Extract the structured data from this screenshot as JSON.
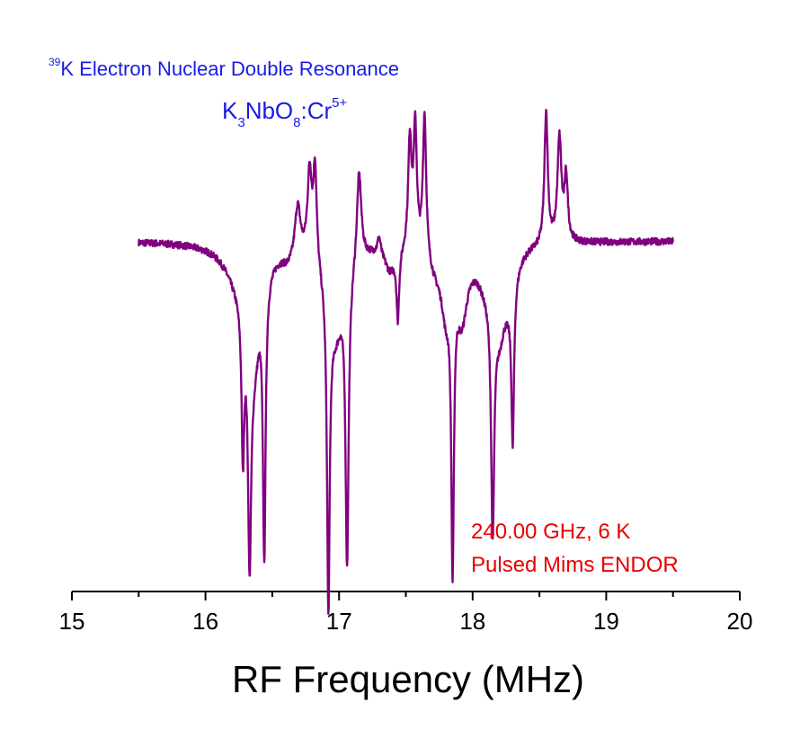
{
  "chart_data": {
    "type": "line",
    "title_line1": {
      "superscript": "39",
      "text": "K Electron Nuclear Double Resonance"
    },
    "title_line2": {
      "parts": [
        {
          "t": "K",
          "s": ""
        },
        {
          "t": "3",
          "s": "sub"
        },
        {
          "t": "NbO",
          "s": ""
        },
        {
          "t": "8",
          "s": "sub"
        },
        {
          "t": ":Cr",
          "s": ""
        },
        {
          "t": "5+",
          "s": "sup"
        }
      ]
    },
    "annotations": [
      "240.00 GHz, 6 K",
      "Pulsed Mims ENDOR"
    ],
    "xlabel": "RF Frequency (MHz)",
    "ylabel": "",
    "xlim": [
      15,
      20
    ],
    "ylim": [
      -1.0,
      1.0
    ],
    "x_ticks": [
      "15",
      "16",
      "17",
      "18",
      "19",
      "20"
    ],
    "x_tick_values": [
      15,
      16,
      17,
      18,
      19,
      20
    ],
    "minor_tick_step": 0.5,
    "y_axis_visible": false,
    "grid": false,
    "series": [
      {
        "color": "#800080",
        "x_range": [
          15.5,
          19.5
        ],
        "baseline": 0,
        "noise": 0.012,
        "peaks": [
          {
            "x": 16.24,
            "amp": -0.1,
            "w": 0.12
          },
          {
            "x": 16.28,
            "amp": -0.52,
            "w": 0.012
          },
          {
            "x": 16.33,
            "amp": -0.78,
            "w": 0.014
          },
          {
            "x": 16.44,
            "amp": -0.95,
            "w": 0.012
          },
          {
            "x": 16.36,
            "amp": -0.35,
            "w": 0.06
          },
          {
            "x": 16.69,
            "amp": 0.18,
            "w": 0.025
          },
          {
            "x": 16.62,
            "amp": -0.04,
            "w": 0.06
          },
          {
            "x": 16.78,
            "amp": 0.3,
            "w": 0.02
          },
          {
            "x": 16.82,
            "amp": 0.33,
            "w": 0.015
          },
          {
            "x": 16.92,
            "amp": -1.08,
            "w": 0.012
          },
          {
            "x": 16.97,
            "amp": -0.3,
            "w": 0.08
          },
          {
            "x": 17.06,
            "amp": -1.0,
            "w": 0.014
          },
          {
            "x": 17.15,
            "amp": 0.32,
            "w": 0.02
          },
          {
            "x": 17.3,
            "amp": 0.06,
            "w": 0.015
          },
          {
            "x": 17.38,
            "amp": -0.08,
            "w": 0.05
          },
          {
            "x": 17.44,
            "amp": -0.24,
            "w": 0.012
          },
          {
            "x": 17.53,
            "amp": 0.38,
            "w": 0.015
          },
          {
            "x": 17.57,
            "amp": 0.42,
            "w": 0.015
          },
          {
            "x": 17.64,
            "amp": 0.5,
            "w": 0.015
          },
          {
            "x": 17.72,
            "amp": -0.08,
            "w": 0.08
          },
          {
            "x": 17.85,
            "amp": -1.0,
            "w": 0.012
          },
          {
            "x": 17.8,
            "amp": -0.18,
            "w": 0.04
          },
          {
            "x": 17.92,
            "amp": -0.22,
            "w": 0.05
          },
          {
            "x": 18.1,
            "amp": -0.1,
            "w": 0.08
          },
          {
            "x": 18.15,
            "amp": -0.82,
            "w": 0.014
          },
          {
            "x": 18.2,
            "amp": -0.22,
            "w": 0.05
          },
          {
            "x": 18.3,
            "amp": -0.55,
            "w": 0.012
          },
          {
            "x": 18.27,
            "amp": -0.12,
            "w": 0.06
          },
          {
            "x": 18.55,
            "amp": 0.46,
            "w": 0.015
          },
          {
            "x": 18.65,
            "amp": 0.36,
            "w": 0.018
          },
          {
            "x": 18.7,
            "amp": 0.22,
            "w": 0.015
          }
        ]
      }
    ]
  }
}
